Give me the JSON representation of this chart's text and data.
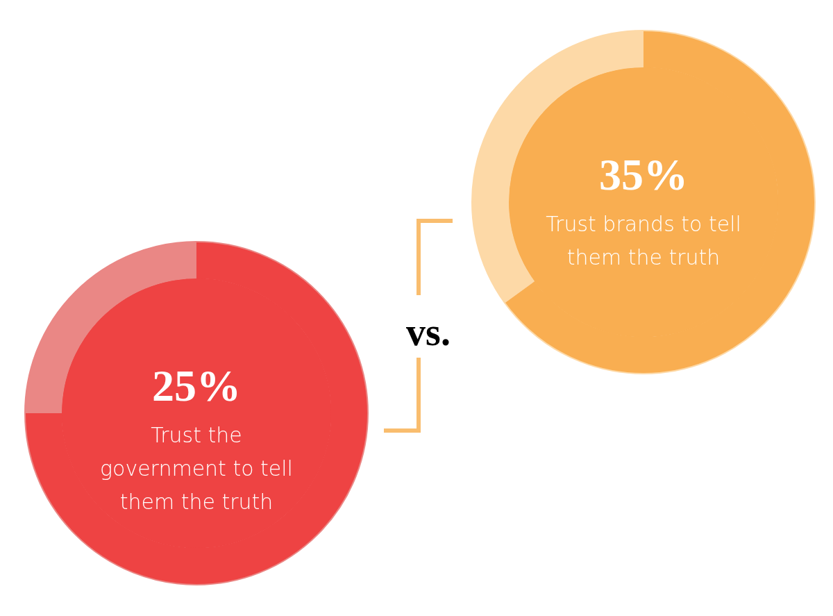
{
  "chart_data": [
    {
      "type": "donut",
      "categories": [
        null,
        null
      ],
      "values": [
        25,
        75
      ],
      "colors": [
        "#ea8785",
        "#ee4343"
      ],
      "value_labels": [
        "25%",
        null
      ],
      "annotations": [
        "Trust the government to tell them the truth",
        "vs."
      ]
    },
    {
      "type": "donut",
      "categories": [
        null,
        null
      ],
      "values": [
        35,
        65
      ],
      "colors": [
        "#fdd9a7",
        "#f9ae51"
      ],
      "value_labels": [
        "35%",
        null
      ],
      "annotations": [
        "Trust brands to tell them the truth"
      ]
    }
  ]
}
